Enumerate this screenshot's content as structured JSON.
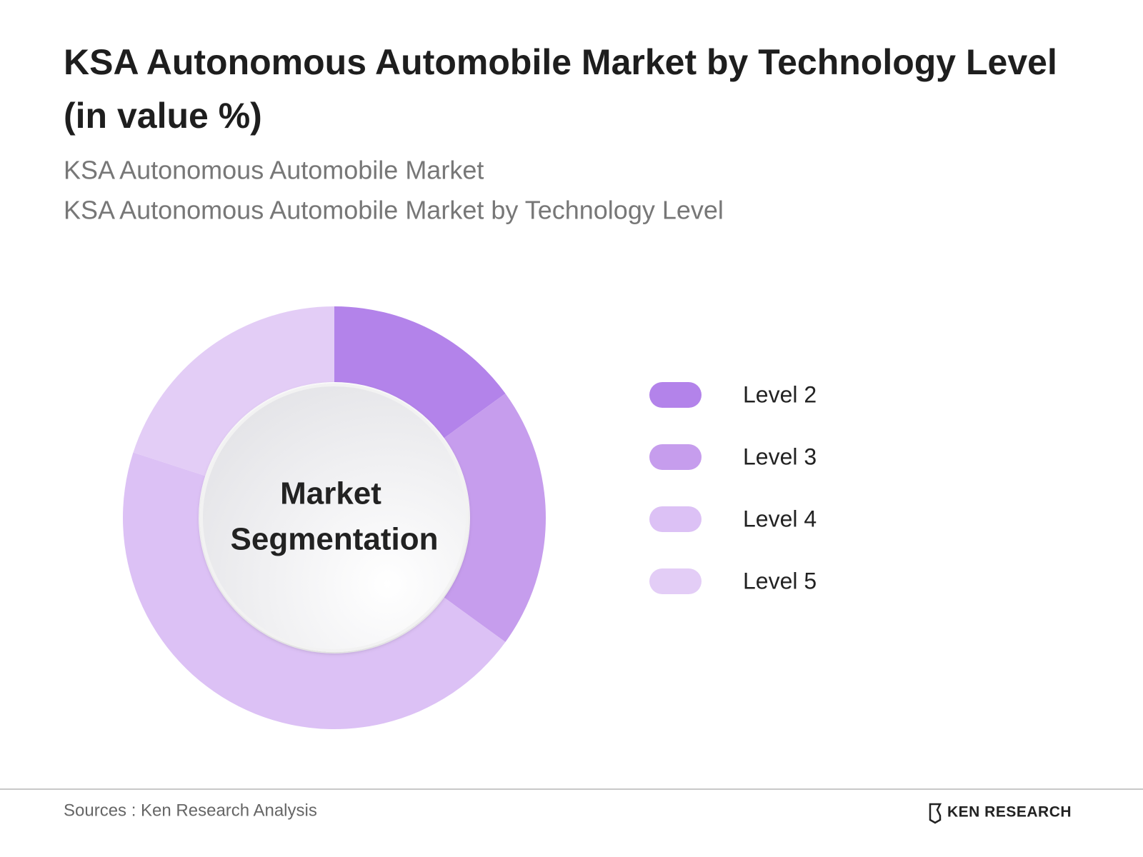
{
  "chart_data": {
    "type": "donut",
    "title": [
      "KSA Autonomous Automobile Market by Technology Level",
      "(in value %)"
    ],
    "subtitles": [
      "KSA Autonomous Automobile Market",
      "KSA Autonomous Automobile Market by Technology Level"
    ],
    "center_label": [
      "Market",
      "Segmentation"
    ],
    "categories": [
      "Level 2",
      "Level 3",
      "Level 4",
      "Level 5"
    ],
    "values": [
      15,
      20,
      45,
      20
    ],
    "colors": [
      "#b383ea",
      "#c69ded",
      "#dcc1f5",
      "#e3cdf6"
    ],
    "legend": "right",
    "source": "Sources : Ken Research Analysis",
    "brand": "KEN RESEARCH"
  }
}
